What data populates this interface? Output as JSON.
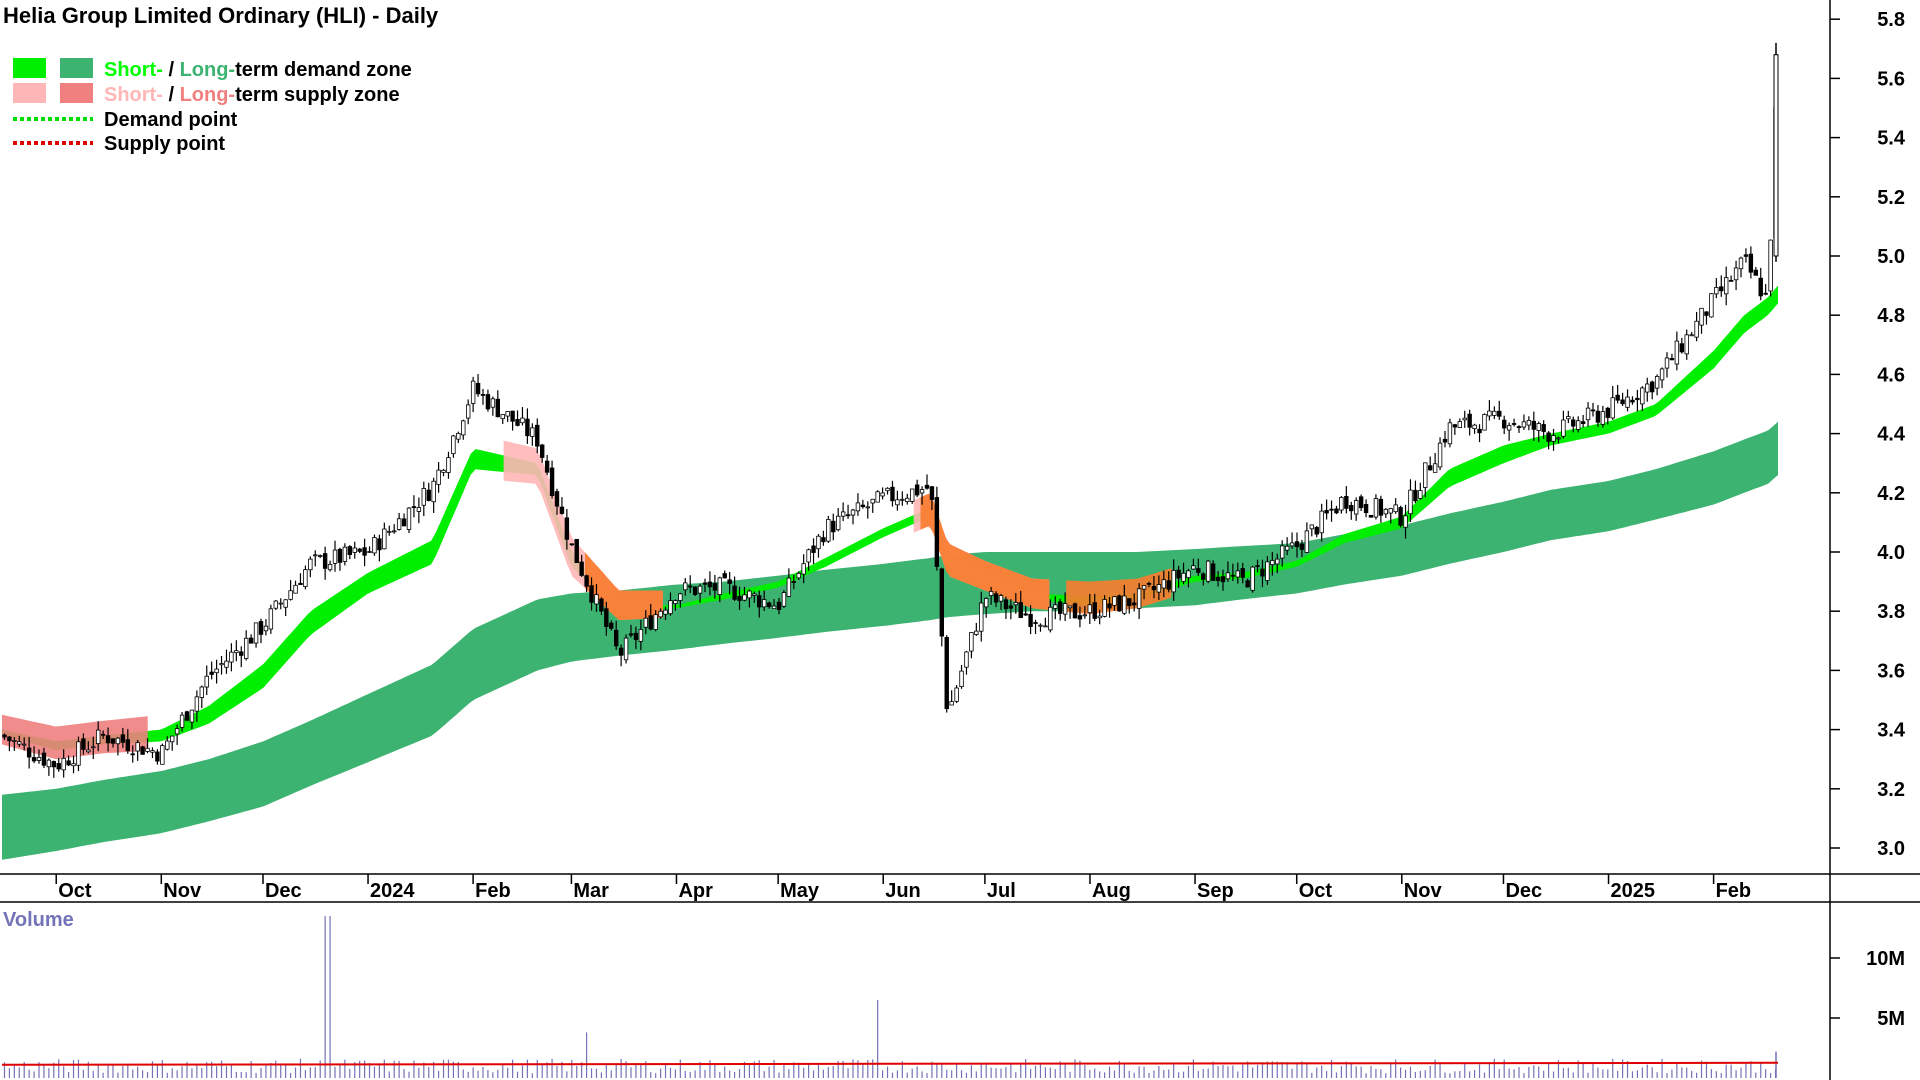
{
  "chart_data": {
    "type": "candlestick",
    "title": "Helia Group Limited Ordinary (HLI) - Daily",
    "legend": {
      "placement": "top-left",
      "items": [
        {
          "short_label": "Short-",
          "sep": " / ",
          "long_label": "Long-",
          "rest": "term demand zone",
          "short_color": "#00ff00",
          "long_color": "#3cb371"
        },
        {
          "short_label": "Short-",
          "sep": " / ",
          "long_label": "Long-",
          "rest": "term supply zone",
          "short_color": "#ffb6b6",
          "long_color": "#f08080"
        },
        {
          "label": "Demand point",
          "color": "#00dd00"
        },
        {
          "label": "Supply point",
          "color": "#e00000"
        }
      ]
    },
    "y_axis": {
      "position": "right",
      "ticks": [
        "3.0",
        "3.2",
        "3.4",
        "3.6",
        "3.8",
        "4.0",
        "4.2",
        "4.4",
        "4.6",
        "4.8",
        "5.0",
        "5.2",
        "5.4",
        "5.6",
        "5.8"
      ],
      "ylim": [
        2.9,
        5.85
      ]
    },
    "x_axis": {
      "ticks": [
        "Oct",
        "Nov",
        "Dec",
        "2024",
        "Feb",
        "Mar",
        "Apr",
        "May",
        "Jun",
        "Jul",
        "Aug",
        "Sep",
        "Oct",
        "Nov",
        "Dec",
        "2025",
        "Feb"
      ]
    },
    "series": [
      {
        "name": "Price (approx. close)",
        "x": [
          "2023-09-15",
          "2023-10-01",
          "2023-10-15",
          "2023-11-01",
          "2023-11-15",
          "2023-12-01",
          "2023-12-15",
          "2024-01-01",
          "2024-01-20",
          "2024-02-01",
          "2024-02-20",
          "2024-03-01",
          "2024-03-15",
          "2024-04-01",
          "2024-04-15",
          "2024-05-01",
          "2024-05-15",
          "2024-06-01",
          "2024-06-15",
          "2024-06-20",
          "2024-07-01",
          "2024-07-15",
          "2024-08-01",
          "2024-08-15",
          "2024-09-01",
          "2024-09-15",
          "2024-10-01",
          "2024-10-15",
          "2024-11-01",
          "2024-11-15",
          "2024-12-01",
          "2024-12-15",
          "2025-01-01",
          "2025-01-15",
          "2025-02-01",
          "2025-02-10",
          "2025-02-17",
          "2025-02-20"
        ],
        "values": [
          3.38,
          3.28,
          3.38,
          3.32,
          3.58,
          3.75,
          3.96,
          4.0,
          4.22,
          4.55,
          4.38,
          4.02,
          3.65,
          3.87,
          3.88,
          3.82,
          4.08,
          4.18,
          4.22,
          3.45,
          3.85,
          3.78,
          3.8,
          3.84,
          3.95,
          3.9,
          4.02,
          4.18,
          4.12,
          4.42,
          4.45,
          4.4,
          4.48,
          4.58,
          4.85,
          4.98,
          4.85,
          5.68
        ]
      },
      {
        "name": "Short-term zone top",
        "values": [
          3.4,
          3.36,
          3.38,
          3.4,
          3.48,
          3.62,
          3.8,
          3.93,
          4.04,
          4.35,
          4.3,
          4.0,
          3.82,
          3.82,
          3.86,
          3.9,
          3.98,
          4.08,
          4.15,
          3.98,
          3.92,
          3.86,
          3.85,
          3.86,
          3.92,
          3.93,
          3.97,
          4.06,
          4.12,
          4.28,
          4.36,
          4.4,
          4.44,
          4.5,
          4.68,
          4.8,
          4.86,
          4.9
        ]
      },
      {
        "name": "Short-term zone bottom",
        "values": [
          3.38,
          3.33,
          3.35,
          3.36,
          3.42,
          3.54,
          3.72,
          3.86,
          3.96,
          4.28,
          4.26,
          3.95,
          3.8,
          3.81,
          3.84,
          3.88,
          3.95,
          4.05,
          4.12,
          3.95,
          3.9,
          3.84,
          3.82,
          3.84,
          3.9,
          3.91,
          3.95,
          4.03,
          4.08,
          4.22,
          4.3,
          4.36,
          4.4,
          4.46,
          4.62,
          4.74,
          4.8,
          4.84
        ]
      },
      {
        "name": "Long-term zone top",
        "values": [
          3.18,
          3.2,
          3.23,
          3.26,
          3.3,
          3.36,
          3.43,
          3.52,
          3.62,
          3.74,
          3.84,
          3.86,
          3.87,
          3.89,
          3.9,
          3.92,
          3.94,
          3.96,
          3.98,
          3.99,
          4.0,
          4.0,
          4.0,
          4.0,
          4.01,
          4.02,
          4.03,
          4.06,
          4.09,
          4.13,
          4.17,
          4.21,
          4.24,
          4.28,
          4.34,
          4.38,
          4.41,
          4.44
        ]
      },
      {
        "name": "Long-term zone bottom",
        "values": [
          2.96,
          2.99,
          3.02,
          3.05,
          3.09,
          3.14,
          3.21,
          3.29,
          3.38,
          3.5,
          3.6,
          3.63,
          3.65,
          3.67,
          3.69,
          3.71,
          3.73,
          3.75,
          3.77,
          3.78,
          3.79,
          3.8,
          3.8,
          3.81,
          3.82,
          3.84,
          3.86,
          3.89,
          3.92,
          3.96,
          4.0,
          4.04,
          4.07,
          4.11,
          4.16,
          4.2,
          4.23,
          4.26
        ]
      }
    ],
    "volume_panel": {
      "label": "Volume",
      "ticks": [
        "5M",
        "10M"
      ],
      "notable_spikes": [
        {
          "x": "2023-12-20",
          "value": 13.5
        },
        {
          "x": "2024-05-30",
          "value": 6.5
        },
        {
          "x": "2024-03-05",
          "value": 3.8
        }
      ],
      "average_approx": 1.1,
      "unit": "M"
    },
    "grid": false
  }
}
